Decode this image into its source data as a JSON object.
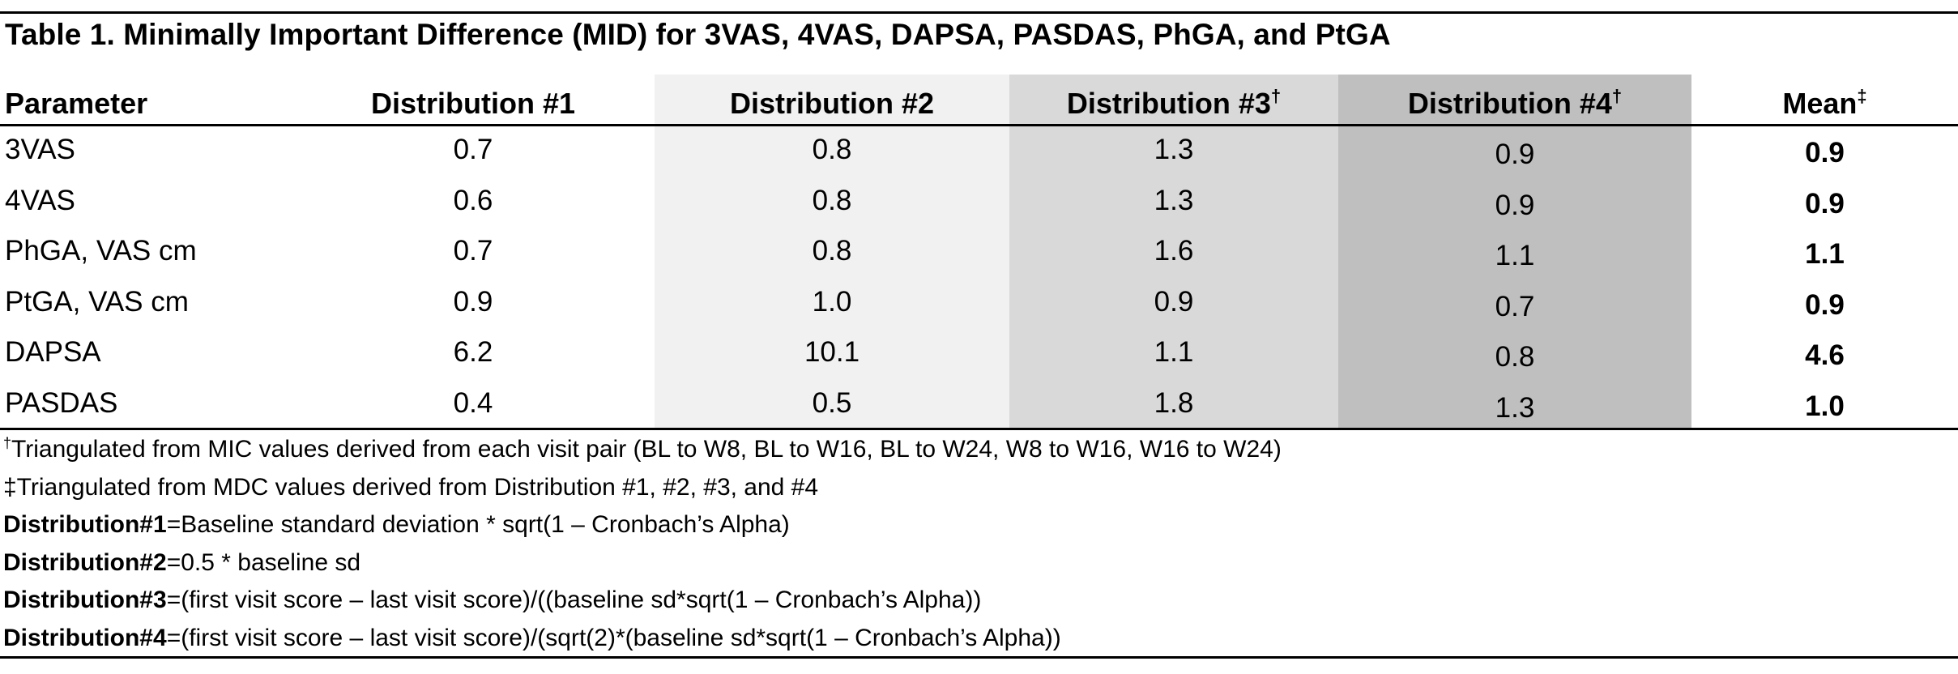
{
  "title": "Table 1. Minimally Important Difference (MID) for 3VAS, 4VAS, DAPSA, PASDAS, PhGA, and PtGA",
  "columns": {
    "parameter": "Parameter",
    "d1": "Distribution #1",
    "d2": "Distribution #2",
    "d3": "Distribution #3",
    "d3_mark": "†",
    "d4": "Distribution #4",
    "d4_mark": "†",
    "mean": "Mean",
    "mean_mark": "‡"
  },
  "rows": [
    {
      "parameter": "3VAS",
      "d1": "0.7",
      "d2": "0.8",
      "d3": "1.3",
      "d4": "0.9",
      "mean": "0.9"
    },
    {
      "parameter": "4VAS",
      "d1": "0.6",
      "d2": "0.8",
      "d3": "1.3",
      "d4": "0.9",
      "mean": "0.9"
    },
    {
      "parameter": "PhGA, VAS cm",
      "d1": "0.7",
      "d2": "0.8",
      "d3": "1.6",
      "d4": "1.1",
      "mean": "1.1"
    },
    {
      "parameter": "PtGA, VAS cm",
      "d1": "0.9",
      "d2": "1.0",
      "d3": "0.9",
      "d4": "0.7",
      "mean": "0.9"
    },
    {
      "parameter": "DAPSA",
      "d1": "6.2",
      "d2": "10.1",
      "d3": "1.1",
      "d4": "0.8",
      "mean": "4.6"
    },
    {
      "parameter": "PASDAS",
      "d1": "0.4",
      "d2": "0.5",
      "d3": "1.8",
      "d4": "1.3",
      "mean": "1.0"
    }
  ],
  "notes": {
    "n1_mark": "†",
    "n1_text": "Triangulated from MIC values derived from each visit pair (BL to W8, BL to W16, BL to W24, W8 to W16, W16 to W24)",
    "n2_text": "‡Triangulated from MDC values derived from Distribution #1, #2, #3, and #4",
    "n3_label": "Distribution#1",
    "n3_text": "=Baseline standard deviation * sqrt(1 – Cronbach’s Alpha)",
    "n4_label": "Distribution#2",
    "n4_text": "=0.5 * baseline sd",
    "n5_label": "Distribution#3",
    "n5_text": "=(first visit score – last visit score)/((baseline sd*sqrt(1 – Cronbach’s Alpha))",
    "n6_label": "Distribution#4",
    "n6_text": "=(first visit score – last visit score)/(sqrt(2)*(baseline sd*sqrt(1 – Cronbach’s Alpha))"
  },
  "colors": {
    "d2_shade": "#f1f1f1",
    "d3_shade": "#d9d9d9",
    "d4_shade": "#bfbfbf",
    "rule": "#000000"
  }
}
